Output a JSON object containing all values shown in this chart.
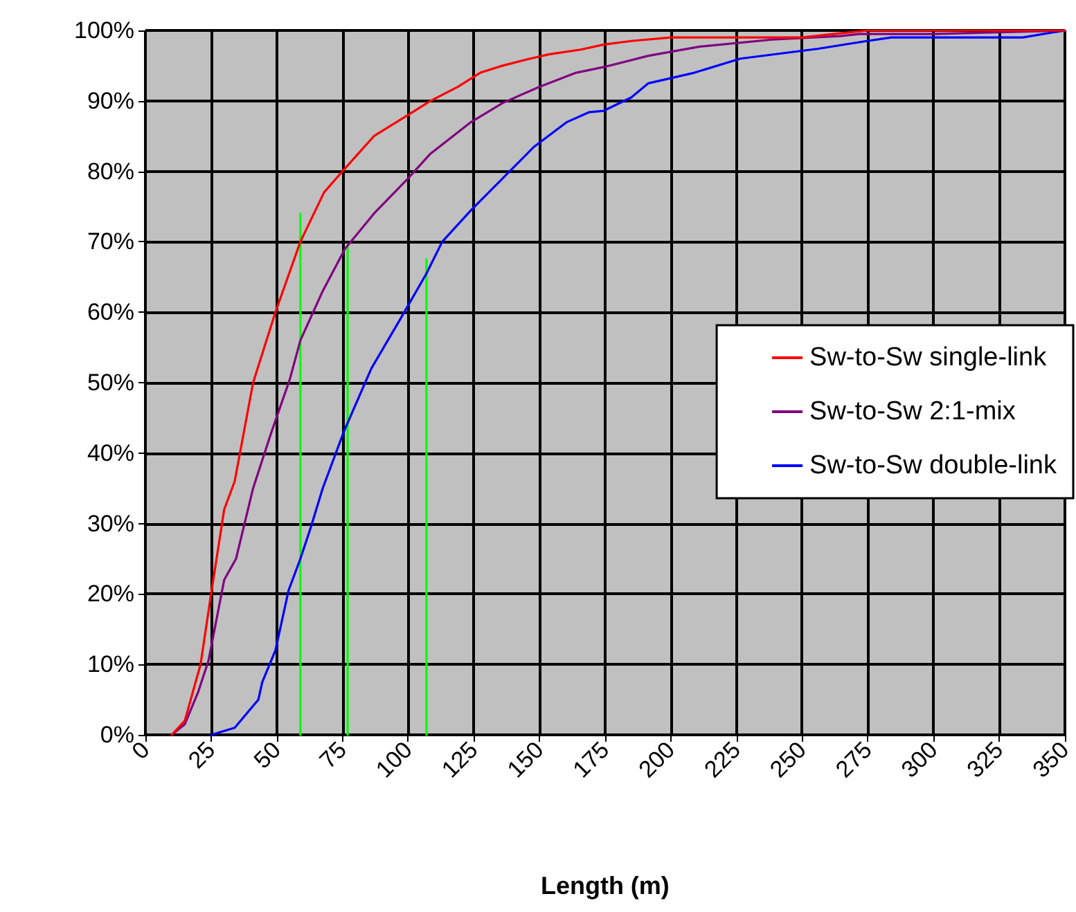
{
  "chart_data": {
    "type": "line",
    "xlabel": "Length (m)",
    "xlim": [
      0,
      350
    ],
    "xticks": [
      0,
      25,
      50,
      75,
      100,
      125,
      150,
      175,
      200,
      225,
      250,
      275,
      300,
      325,
      350
    ],
    "ylim": [
      0,
      100
    ],
    "yticks": [
      {
        "value": 0,
        "label": "0%"
      },
      {
        "value": 10,
        "label": "10%"
      },
      {
        "value": 20,
        "label": "20%"
      },
      {
        "value": 30,
        "label": "30%"
      },
      {
        "value": 40,
        "label": "40%"
      },
      {
        "value": 50,
        "label": "50%"
      },
      {
        "value": 60,
        "label": "60%"
      },
      {
        "value": 70,
        "label": "70%"
      },
      {
        "value": 80,
        "label": "80%"
      },
      {
        "value": 90,
        "label": "90%"
      },
      {
        "value": 100,
        "label": "100%"
      }
    ],
    "grid": true,
    "legend": "right",
    "marker": "none",
    "line_style": "solid",
    "series": [
      {
        "name": "Sw-to-Sw single-link",
        "color": "#ff0000",
        "x": [
          10,
          15,
          18,
          21,
          25,
          30,
          34,
          41,
          49.5,
          59,
          68,
          75,
          87,
          100,
          108.5,
          119,
          127.5,
          136,
          146.5,
          153.5,
          166,
          174.5,
          185,
          200,
          225,
          250,
          262,
          275,
          300,
          350
        ],
        "values": [
          0,
          2,
          6,
          10,
          20,
          32,
          36,
          50,
          60,
          70,
          77,
          80,
          85,
          88,
          90,
          92,
          94,
          95,
          96,
          96.6,
          97.3,
          98,
          98.5,
          99,
          99,
          99,
          99.5,
          100,
          100,
          100
        ]
      },
      {
        "name": "Sw-to-Sw 2:1-mix",
        "color": "#800080",
        "x": [
          10,
          15,
          20,
          24,
          30,
          34.5,
          41,
          48,
          55,
          59,
          67.5,
          76,
          87,
          100,
          108.5,
          124,
          136,
          150,
          164,
          174.5,
          191.5,
          211,
          238.5,
          264.5,
          272,
          300,
          350
        ],
        "values": [
          0,
          1.5,
          6,
          10.5,
          22,
          25,
          35,
          43,
          50.5,
          56,
          63,
          69,
          74,
          79,
          82.5,
          87,
          89.7,
          92,
          94,
          94.8,
          96.4,
          97.7,
          98.7,
          99.2,
          99.5,
          99.5,
          100
        ]
      },
      {
        "name": "Sw-to-Sw double-link",
        "color": "#0000ff",
        "x": [
          25,
          34,
          43,
          44.5,
          49.5,
          54.5,
          59,
          63,
          67.5,
          75.5,
          86,
          97,
          107,
          113,
          124,
          136,
          148,
          160.5,
          169,
          174.5,
          185,
          191.5,
          209,
          226.5,
          256,
          273,
          284,
          334,
          350
        ],
        "values": [
          0,
          1,
          5,
          7.5,
          12,
          20.5,
          25,
          29.5,
          35,
          43,
          52,
          59,
          65.5,
          70,
          74.5,
          79,
          83.5,
          87,
          88.4,
          88.6,
          90.5,
          92.5,
          94,
          96,
          97.4,
          98.4,
          99,
          99,
          100
        ]
      },
      {
        "color": "#00ff00",
        "x": [
          59,
          59
        ],
        "values": [
          0,
          74
        ]
      },
      {
        "color": "#00ff00",
        "x": [
          77,
          77
        ],
        "values": [
          0,
          69.5
        ]
      },
      {
        "color": "#00ff00",
        "x": [
          107,
          107
        ],
        "values": [
          0,
          67.5
        ]
      }
    ]
  }
}
